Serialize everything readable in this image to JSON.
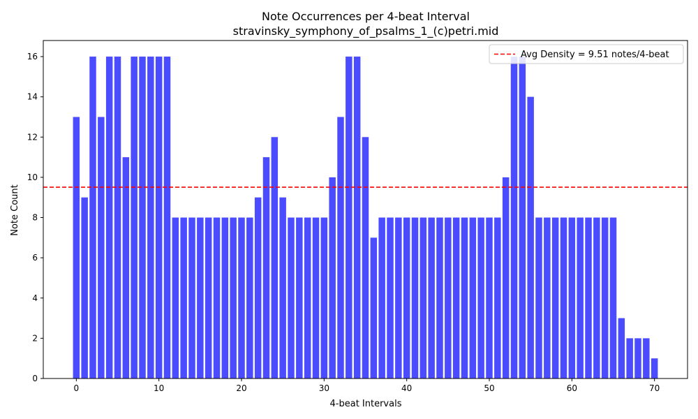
{
  "chart_data": {
    "type": "bar",
    "title": "Note Occurrences per 4-beat Interval",
    "subtitle": "stravinsky_symphony_of_psalms_1_(c)petri.mid",
    "xlabel": "4-beat Intervals",
    "ylabel": "Note Count",
    "x": [
      0,
      1,
      2,
      3,
      4,
      5,
      6,
      7,
      8,
      9,
      10,
      11,
      12,
      13,
      14,
      15,
      16,
      17,
      18,
      19,
      20,
      21,
      22,
      23,
      24,
      25,
      26,
      27,
      28,
      29,
      30,
      31,
      32,
      33,
      34,
      35,
      36,
      37,
      38,
      39,
      40,
      41,
      42,
      43,
      44,
      45,
      46,
      47,
      48,
      49,
      50,
      51,
      52,
      53,
      54,
      55,
      56,
      57,
      58,
      59,
      60,
      61,
      62,
      63,
      64,
      65,
      66,
      67,
      68,
      69,
      70
    ],
    "values": [
      13,
      9,
      16,
      13,
      16,
      16,
      11,
      16,
      16,
      16,
      16,
      16,
      8,
      8,
      8,
      8,
      8,
      8,
      8,
      8,
      8,
      8,
      9,
      11,
      12,
      9,
      8,
      8,
      8,
      8,
      8,
      10,
      13,
      16,
      16,
      12,
      7,
      8,
      8,
      8,
      8,
      8,
      8,
      8,
      8,
      8,
      8,
      8,
      8,
      8,
      8,
      8,
      10,
      16,
      16,
      14,
      8,
      8,
      8,
      8,
      8,
      8,
      8,
      8,
      8,
      8,
      3,
      2,
      2,
      2,
      1
    ],
    "xlim": [
      -4,
      74
    ],
    "ylim": [
      0,
      16.8
    ],
    "xticks": [
      0,
      10,
      20,
      30,
      40,
      50,
      60,
      70
    ],
    "yticks": [
      0,
      2,
      4,
      6,
      8,
      10,
      12,
      14,
      16
    ],
    "bar_color": "#4b4bff",
    "reference_line": {
      "value": 9.51,
      "color": "#ff0000",
      "label": "Avg Density = 9.51 notes/4-beat"
    },
    "legend_position": "top-right",
    "grid": false
  }
}
